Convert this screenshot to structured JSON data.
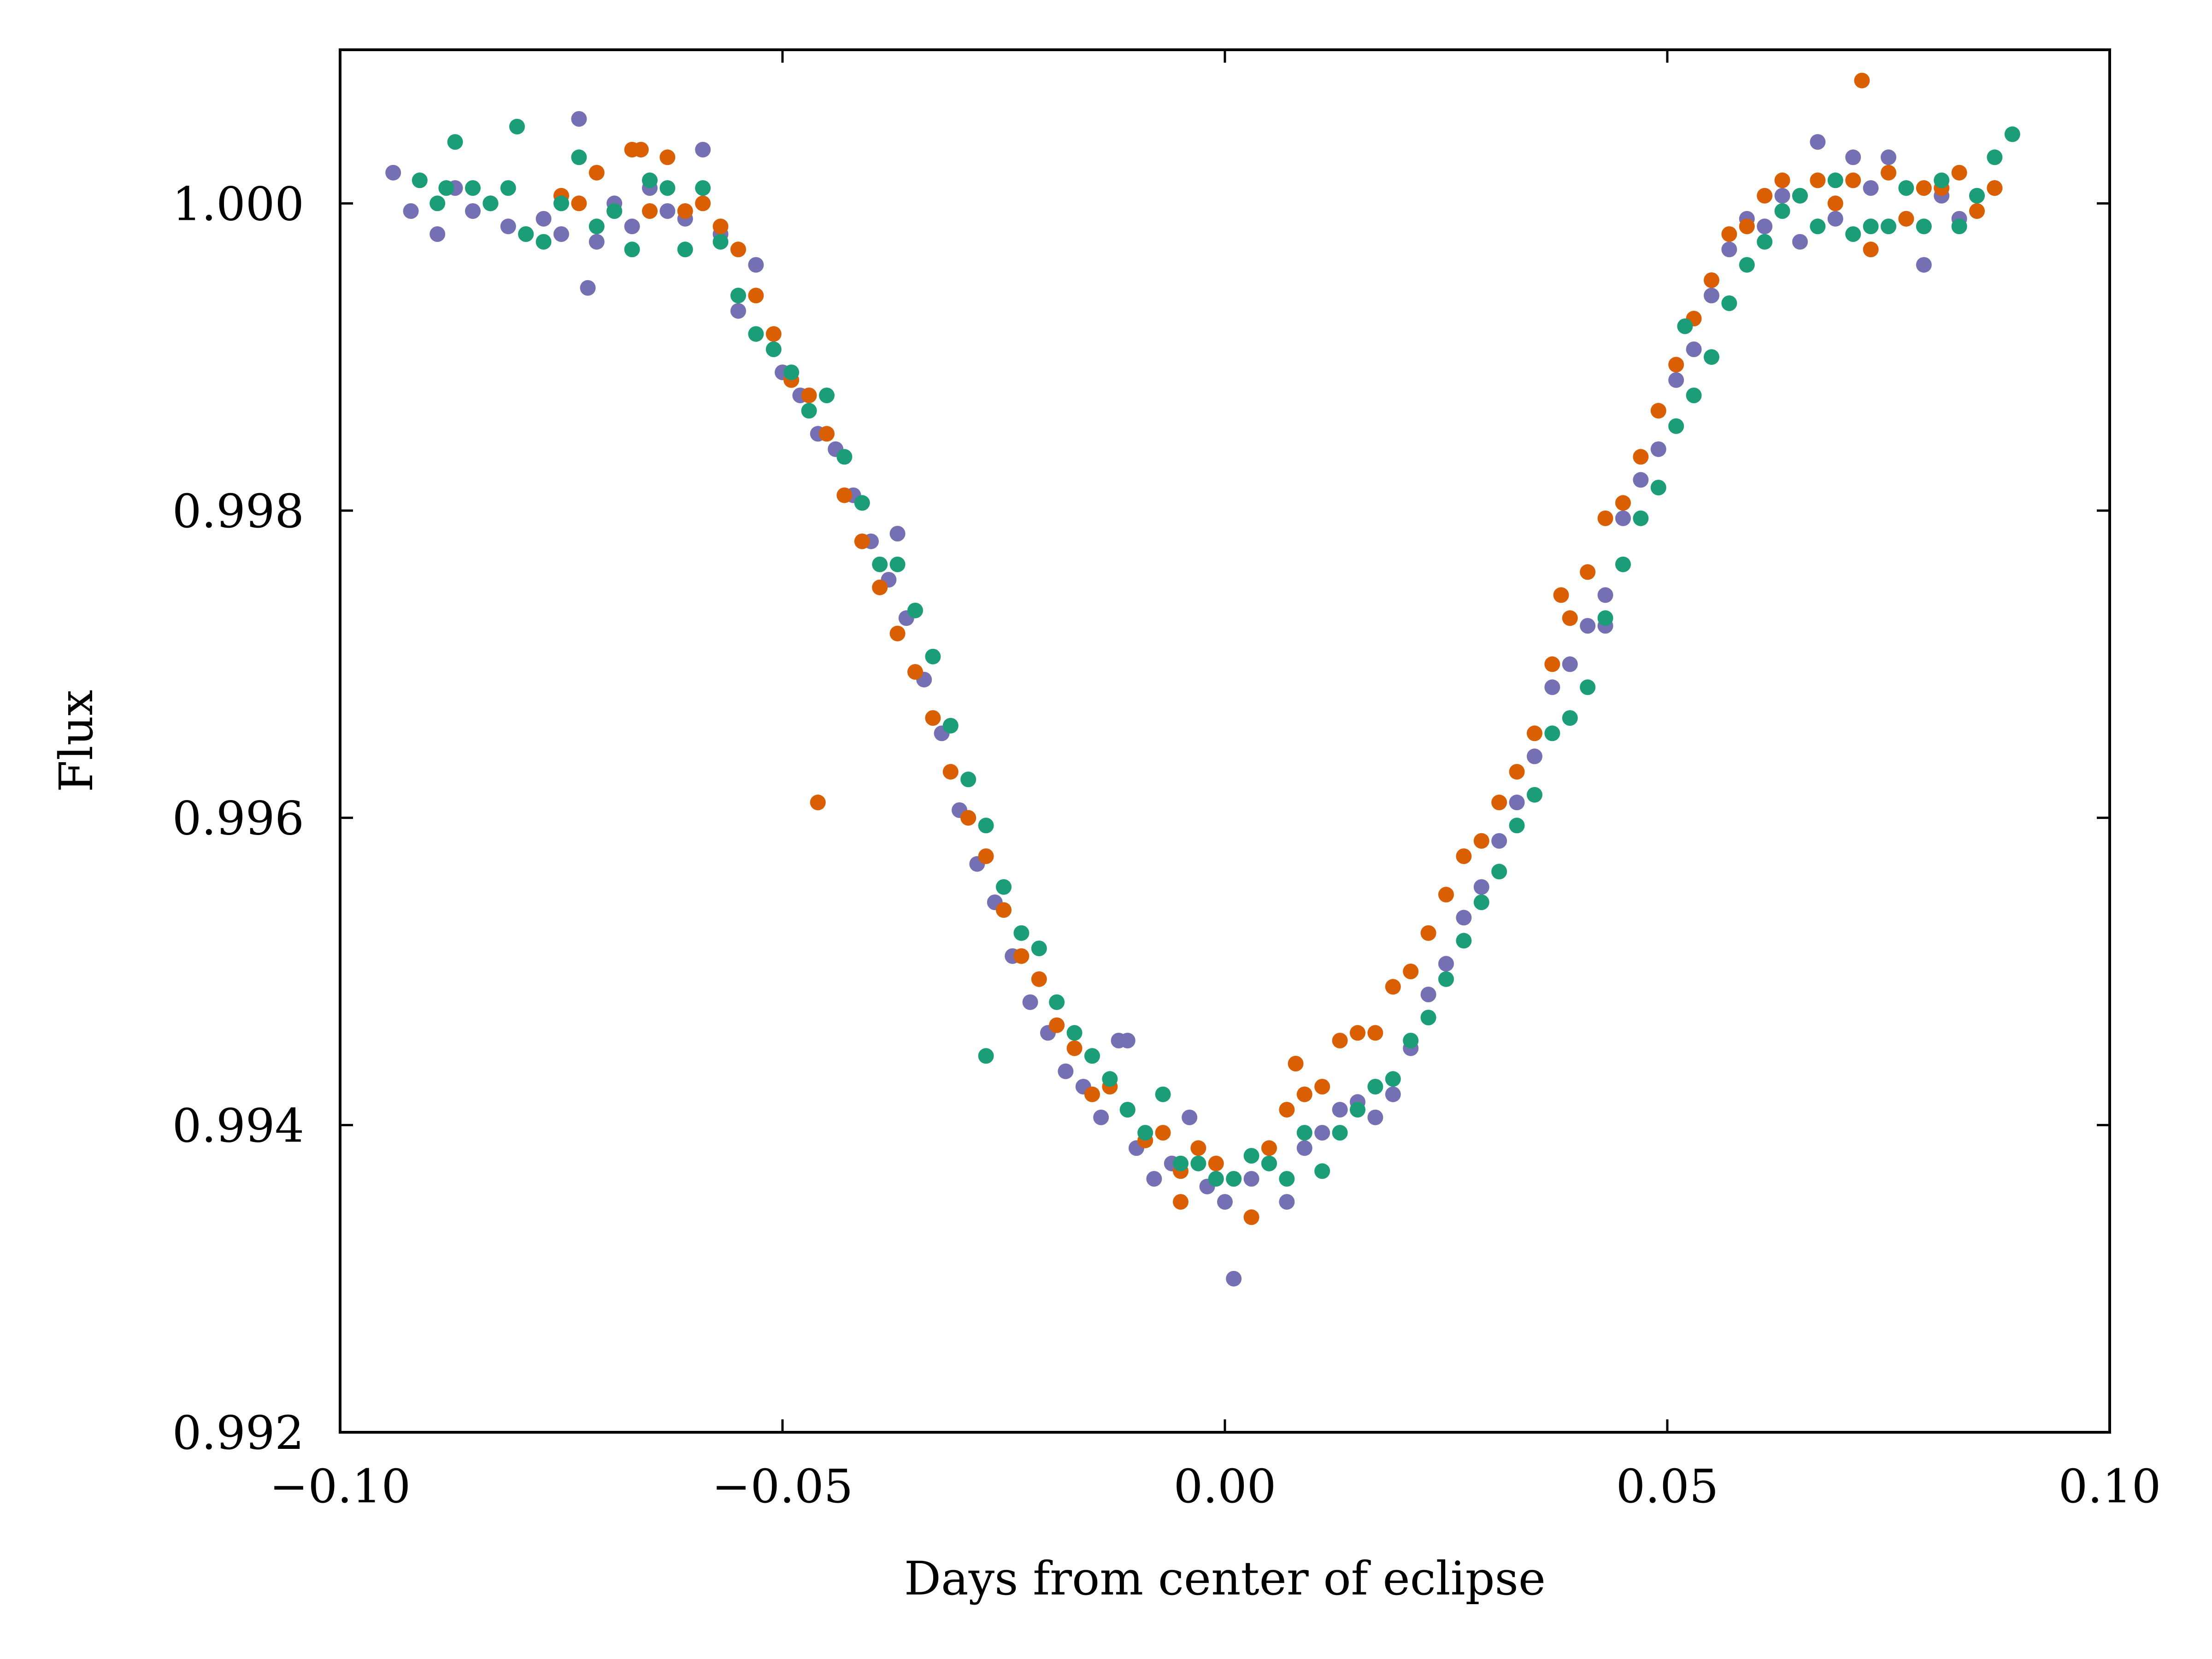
{
  "chart_data": {
    "type": "scatter",
    "title": "",
    "xlabel": "Days from center of eclipse",
    "ylabel": "Flux",
    "xlim": [
      -0.1,
      0.1
    ],
    "ylim": [
      0.992,
      1.001
    ],
    "xticks": [
      -0.1,
      -0.05,
      0.0,
      0.05,
      0.1
    ],
    "xtick_labels": [
      "−0.10",
      "−0.05",
      "0.00",
      "0.05",
      "0.10"
    ],
    "yticks": [
      0.992,
      0.994,
      0.996,
      0.998,
      1.0
    ],
    "ytick_labels": [
      "0.992",
      "0.994",
      "0.996",
      "0.998",
      "1.000"
    ],
    "grid": false,
    "legend": "none",
    "series": [
      {
        "name": "purple",
        "color": "#7570b3",
        "x": [
          -0.094,
          -0.092,
          -0.089,
          -0.087,
          -0.085,
          -0.083,
          -0.081,
          -0.079,
          -0.077,
          -0.075,
          -0.073,
          -0.071,
          -0.069,
          -0.067,
          -0.065,
          -0.063,
          -0.061,
          -0.059,
          -0.057,
          -0.055,
          -0.053,
          -0.05,
          -0.048,
          -0.046,
          -0.044,
          -0.042,
          -0.04,
          -0.038,
          -0.036,
          -0.034,
          -0.032,
          -0.03,
          -0.028,
          -0.026,
          -0.024,
          -0.022,
          -0.02,
          -0.018,
          -0.016,
          -0.014,
          -0.012,
          -0.01,
          -0.008,
          -0.006,
          -0.004,
          -0.002,
          0.0,
          0.001,
          0.003,
          0.005,
          0.007,
          0.009,
          0.011,
          0.013,
          0.015,
          0.017,
          0.019,
          0.021,
          0.023,
          0.025,
          0.027,
          0.029,
          0.031,
          0.033,
          0.035,
          0.037,
          0.039,
          0.041,
          0.043,
          0.045,
          0.047,
          0.049,
          0.051,
          0.053,
          0.055,
          0.057,
          0.059,
          0.061,
          0.063,
          0.065,
          0.067,
          0.069,
          0.071,
          0.073,
          0.075,
          0.077,
          0.079,
          0.081,
          0.083,
          0.085,
          0.087,
          -0.072,
          0.043,
          -0.037,
          -0.011
        ],
        "y": [
          1.0002,
          0.99995,
          0.9998,
          1.0001,
          0.99995,
          1.0,
          0.99985,
          0.9998,
          0.9999,
          0.9998,
          1.00055,
          0.99975,
          1.0,
          0.99985,
          1.0001,
          0.99995,
          0.9999,
          1.00035,
          0.9998,
          0.9993,
          0.9996,
          0.9989,
          0.99875,
          0.9985,
          0.9984,
          0.9981,
          0.9978,
          0.99755,
          0.9973,
          0.9969,
          0.99655,
          0.99605,
          0.9957,
          0.99545,
          0.9951,
          0.9948,
          0.9946,
          0.99435,
          0.99425,
          0.99405,
          0.99455,
          0.99385,
          0.99365,
          0.99375,
          0.99405,
          0.9936,
          0.9935,
          0.993,
          0.99365,
          0.99375,
          0.9935,
          0.99385,
          0.99395,
          0.9941,
          0.99415,
          0.99405,
          0.9942,
          0.9945,
          0.99485,
          0.99505,
          0.99535,
          0.99555,
          0.99585,
          0.9961,
          0.9964,
          0.99685,
          0.997,
          0.99725,
          0.99745,
          0.99795,
          0.9982,
          0.9984,
          0.99885,
          0.99905,
          0.9994,
          0.9997,
          0.9999,
          0.99985,
          1.00005,
          0.99975,
          1.0004,
          0.9999,
          1.0003,
          1.0001,
          1.0003,
          0.9999,
          0.9996,
          1.00005,
          0.9999,
          1.00005,
          1.0001,
          0.99945,
          0.99725,
          0.99785,
          0.99455
        ]
      },
      {
        "name": "orange",
        "color": "#d95f02",
        "x": [
          -0.075,
          -0.073,
          -0.071,
          -0.069,
          -0.067,
          -0.065,
          -0.063,
          -0.061,
          -0.059,
          -0.057,
          -0.055,
          -0.053,
          -0.051,
          -0.049,
          -0.047,
          -0.045,
          -0.043,
          -0.041,
          -0.039,
          -0.037,
          -0.035,
          -0.033,
          -0.031,
          -0.029,
          -0.027,
          -0.025,
          -0.023,
          -0.021,
          -0.019,
          -0.017,
          -0.015,
          -0.013,
          -0.011,
          -0.009,
          -0.007,
          -0.005,
          -0.003,
          -0.001,
          0.001,
          0.003,
          0.005,
          0.007,
          0.009,
          0.011,
          0.013,
          0.015,
          0.017,
          0.019,
          0.021,
          0.023,
          0.025,
          0.027,
          0.029,
          0.031,
          0.033,
          0.035,
          0.037,
          0.039,
          0.041,
          0.043,
          0.045,
          0.047,
          0.049,
          0.051,
          0.053,
          0.055,
          0.057,
          0.059,
          0.061,
          0.063,
          0.065,
          0.067,
          0.069,
          0.071,
          0.073,
          0.075,
          0.077,
          0.079,
          0.081,
          0.083,
          0.085,
          0.087,
          -0.066,
          0.072,
          -0.005,
          0.008,
          -0.046,
          0.038
        ],
        "y": [
          1.00005,
          1.0,
          1.0002,
          0.99995,
          1.00035,
          0.99995,
          1.0003,
          0.99995,
          1.0,
          0.99985,
          0.9997,
          0.9994,
          0.99915,
          0.99885,
          0.99875,
          0.9985,
          0.9981,
          0.9978,
          0.9975,
          0.9972,
          0.99695,
          0.99665,
          0.9963,
          0.996,
          0.99575,
          0.9954,
          0.9951,
          0.99495,
          0.99465,
          0.9945,
          0.9942,
          0.99425,
          0.9941,
          0.9939,
          0.99395,
          0.9937,
          0.99385,
          0.99375,
          0.99365,
          0.9934,
          0.99385,
          0.9941,
          0.9942,
          0.99425,
          0.99455,
          0.9946,
          0.9946,
          0.9949,
          0.995,
          0.99525,
          0.9955,
          0.99575,
          0.99585,
          0.9961,
          0.9963,
          0.99655,
          0.997,
          0.9973,
          0.9976,
          0.99795,
          0.99805,
          0.99835,
          0.99865,
          0.99895,
          0.99925,
          0.9995,
          0.9998,
          0.99985,
          1.00005,
          1.00015,
          1.00005,
          1.00015,
          1.0,
          1.00015,
          0.9997,
          1.0002,
          0.9999,
          1.0001,
          1.0001,
          1.0002,
          0.99995,
          1.0001,
          1.00035,
          1.0008,
          0.9935,
          0.9944,
          0.9961,
          0.99745
        ]
      },
      {
        "name": "teal",
        "color": "#1b9e77",
        "x": [
          -0.091,
          -0.089,
          -0.087,
          -0.085,
          -0.083,
          -0.081,
          -0.079,
          -0.077,
          -0.075,
          -0.073,
          -0.071,
          -0.069,
          -0.067,
          -0.065,
          -0.063,
          -0.061,
          -0.059,
          -0.057,
          -0.055,
          -0.053,
          -0.051,
          -0.049,
          -0.047,
          -0.045,
          -0.043,
          -0.041,
          -0.039,
          -0.037,
          -0.035,
          -0.033,
          -0.031,
          -0.029,
          -0.027,
          -0.025,
          -0.023,
          -0.021,
          -0.019,
          -0.017,
          -0.015,
          -0.013,
          -0.011,
          -0.009,
          -0.007,
          -0.005,
          -0.003,
          -0.001,
          0.001,
          0.003,
          0.005,
          0.007,
          0.009,
          0.011,
          0.013,
          0.015,
          0.017,
          0.019,
          0.021,
          0.023,
          0.025,
          0.027,
          0.029,
          0.031,
          0.033,
          0.035,
          0.037,
          0.039,
          0.041,
          0.043,
          0.045,
          0.047,
          0.049,
          0.051,
          0.053,
          0.055,
          0.057,
          0.059,
          0.061,
          0.063,
          0.065,
          0.067,
          0.069,
          0.071,
          0.073,
          0.075,
          0.077,
          0.079,
          0.081,
          0.083,
          0.085,
          0.087,
          0.089,
          -0.088,
          -0.08,
          0.052,
          -0.027
        ],
        "y": [
          1.00015,
          1.0,
          1.0004,
          1.0001,
          1.0,
          1.0001,
          0.9998,
          0.99975,
          1.0,
          1.0003,
          0.99985,
          0.99995,
          0.9997,
          1.00015,
          1.0001,
          0.9997,
          1.0001,
          0.99975,
          0.9994,
          0.99915,
          0.99905,
          0.9989,
          0.99865,
          0.99875,
          0.99835,
          0.99805,
          0.99765,
          0.99765,
          0.99735,
          0.99705,
          0.9966,
          0.99625,
          0.99595,
          0.99555,
          0.99525,
          0.99515,
          0.9948,
          0.9946,
          0.99445,
          0.9943,
          0.9941,
          0.99395,
          0.9942,
          0.99375,
          0.99375,
          0.99365,
          0.99365,
          0.9938,
          0.99375,
          0.99365,
          0.99395,
          0.9937,
          0.99395,
          0.9941,
          0.99425,
          0.9943,
          0.99455,
          0.9947,
          0.99495,
          0.9952,
          0.99545,
          0.99565,
          0.99595,
          0.99615,
          0.99655,
          0.99665,
          0.99685,
          0.9973,
          0.99765,
          0.99795,
          0.99815,
          0.99855,
          0.99875,
          0.999,
          0.99935,
          0.9996,
          0.99975,
          0.99995,
          1.00005,
          0.99985,
          1.00015,
          0.9998,
          0.99985,
          0.99985,
          1.0001,
          0.99985,
          1.00015,
          0.99985,
          1.00005,
          1.0003,
          1.00045,
          1.0001,
          1.0005,
          0.9992,
          0.99445
        ]
      }
    ]
  }
}
